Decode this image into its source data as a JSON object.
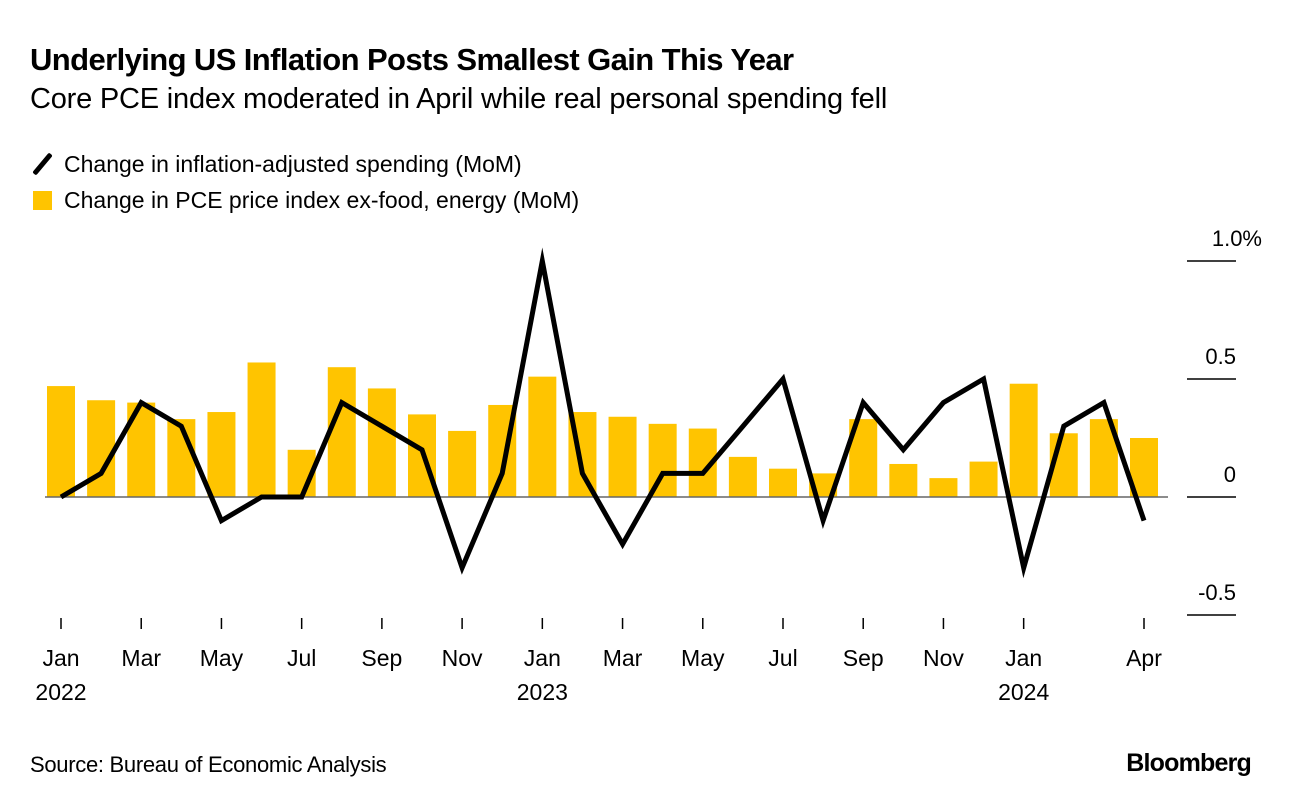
{
  "title": "Underlying US Inflation Posts Smallest Gain This Year",
  "subtitle": "Core PCE index moderated in April while real personal spending fell",
  "legend": [
    {
      "label": "Change in inflation-adjusted spending (MoM)",
      "icon": "line-swatch-icon",
      "color": "#000000"
    },
    {
      "label": "Change in PCE price index ex-food, energy (MoM)",
      "icon": "bar-swatch-icon",
      "color": "#FFC400"
    }
  ],
  "source": "Source: Bureau of Economic Analysis",
  "brand": "Bloomberg",
  "colors": {
    "bar": "#FFC400",
    "line": "#000000",
    "zero_line": "#666666",
    "tick": "#000000"
  },
  "chart_data": {
    "type": "bar",
    "title": "Underlying US Inflation Posts Smallest Gain This Year",
    "subtitle": "Core PCE index moderated in April while real personal spending fell",
    "xlabel": "",
    "ylabel": "",
    "ylim": [
      -0.5,
      1.0
    ],
    "y_ticks": [
      {
        "value": 1.0,
        "label": "1.0%"
      },
      {
        "value": 0.5,
        "label": "0.5"
      },
      {
        "value": 0,
        "label": "0"
      },
      {
        "value": -0.5,
        "label": "-0.5"
      }
    ],
    "y_axis_position": "right",
    "grid": false,
    "legend_position": "top-left",
    "categories": [
      "Jan 2022",
      "Feb 2022",
      "Mar 2022",
      "Apr 2022",
      "May 2022",
      "Jun 2022",
      "Jul 2022",
      "Aug 2022",
      "Sep 2022",
      "Oct 2022",
      "Nov 2022",
      "Dec 2022",
      "Jan 2023",
      "Feb 2023",
      "Mar 2023",
      "Apr 2023",
      "May 2023",
      "Jun 2023",
      "Jul 2023",
      "Aug 2023",
      "Sep 2023",
      "Oct 2023",
      "Nov 2023",
      "Dec 2023",
      "Jan 2024",
      "Feb 2024",
      "Mar 2024",
      "Apr 2024"
    ],
    "x_ticks": [
      {
        "index": 0,
        "month": "Jan",
        "year": "2022"
      },
      {
        "index": 2,
        "month": "Mar",
        "year": ""
      },
      {
        "index": 4,
        "month": "May",
        "year": ""
      },
      {
        "index": 6,
        "month": "Jul",
        "year": ""
      },
      {
        "index": 8,
        "month": "Sep",
        "year": ""
      },
      {
        "index": 10,
        "month": "Nov",
        "year": ""
      },
      {
        "index": 12,
        "month": "Jan",
        "year": "2023"
      },
      {
        "index": 14,
        "month": "Mar",
        "year": ""
      },
      {
        "index": 16,
        "month": "May",
        "year": ""
      },
      {
        "index": 18,
        "month": "Jul",
        "year": ""
      },
      {
        "index": 20,
        "month": "Sep",
        "year": ""
      },
      {
        "index": 22,
        "month": "Nov",
        "year": ""
      },
      {
        "index": 24,
        "month": "Jan",
        "year": "2024"
      },
      {
        "index": 27,
        "month": "Apr",
        "year": ""
      }
    ],
    "series": [
      {
        "name": "Change in PCE price index ex-food, energy (MoM)",
        "type": "bar",
        "values": [
          0.47,
          0.41,
          0.4,
          0.33,
          0.36,
          0.57,
          0.2,
          0.55,
          0.46,
          0.35,
          0.28,
          0.39,
          0.51,
          0.36,
          0.34,
          0.31,
          0.29,
          0.17,
          0.12,
          0.1,
          0.33,
          0.14,
          0.08,
          0.15,
          0.48,
          0.27,
          0.33,
          0.25
        ]
      },
      {
        "name": "Change in inflation-adjusted spending (MoM)",
        "type": "line",
        "values": [
          0.0,
          0.1,
          0.4,
          0.3,
          -0.1,
          0.0,
          0.0,
          0.4,
          0.3,
          0.2,
          -0.3,
          0.1,
          1.0,
          0.1,
          -0.2,
          0.1,
          0.1,
          0.3,
          0.5,
          -0.1,
          0.4,
          0.2,
          0.4,
          0.5,
          -0.3,
          0.3,
          0.4,
          -0.1
        ]
      }
    ]
  }
}
